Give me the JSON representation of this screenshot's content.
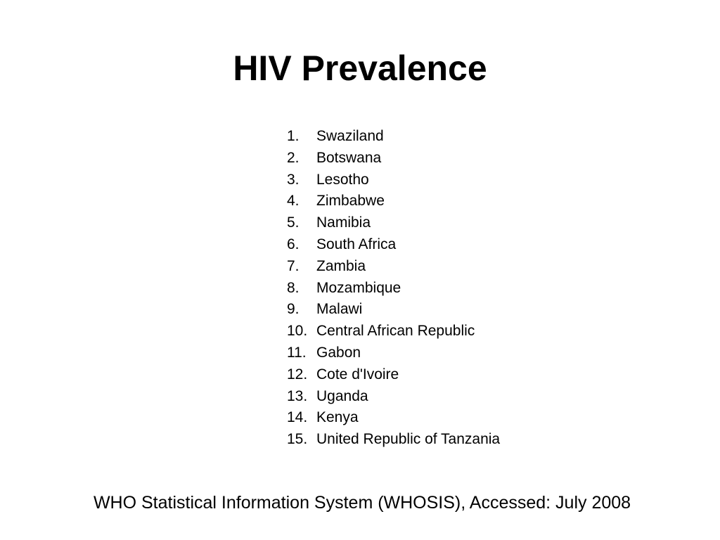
{
  "slide": {
    "title": "HIV Prevalence",
    "ranking": [
      {
        "number": "1.",
        "country": "Swaziland"
      },
      {
        "number": "2.",
        "country": "Botswana"
      },
      {
        "number": "3.",
        "country": "Lesotho"
      },
      {
        "number": "4.",
        "country": "Zimbabwe"
      },
      {
        "number": "5.",
        "country": "Namibia"
      },
      {
        "number": "6.",
        "country": "South Africa"
      },
      {
        "number": "7.",
        "country": "Zambia"
      },
      {
        "number": "8.",
        "country": "Mozambique"
      },
      {
        "number": "9.",
        "country": "Malawi"
      },
      {
        "number": "10.",
        "country": "Central African Republic"
      },
      {
        "number": "11.",
        "country": "Gabon"
      },
      {
        "number": "12.",
        "country": "Cote d'Ivoire"
      },
      {
        "number": "13.",
        "country": "Uganda"
      },
      {
        "number": "14.",
        "country": "Kenya"
      },
      {
        "number": "15.",
        "country": "United Republic of Tanzania"
      }
    ],
    "source": "WHO Statistical Information System (WHOSIS), Accessed: July 2008"
  }
}
